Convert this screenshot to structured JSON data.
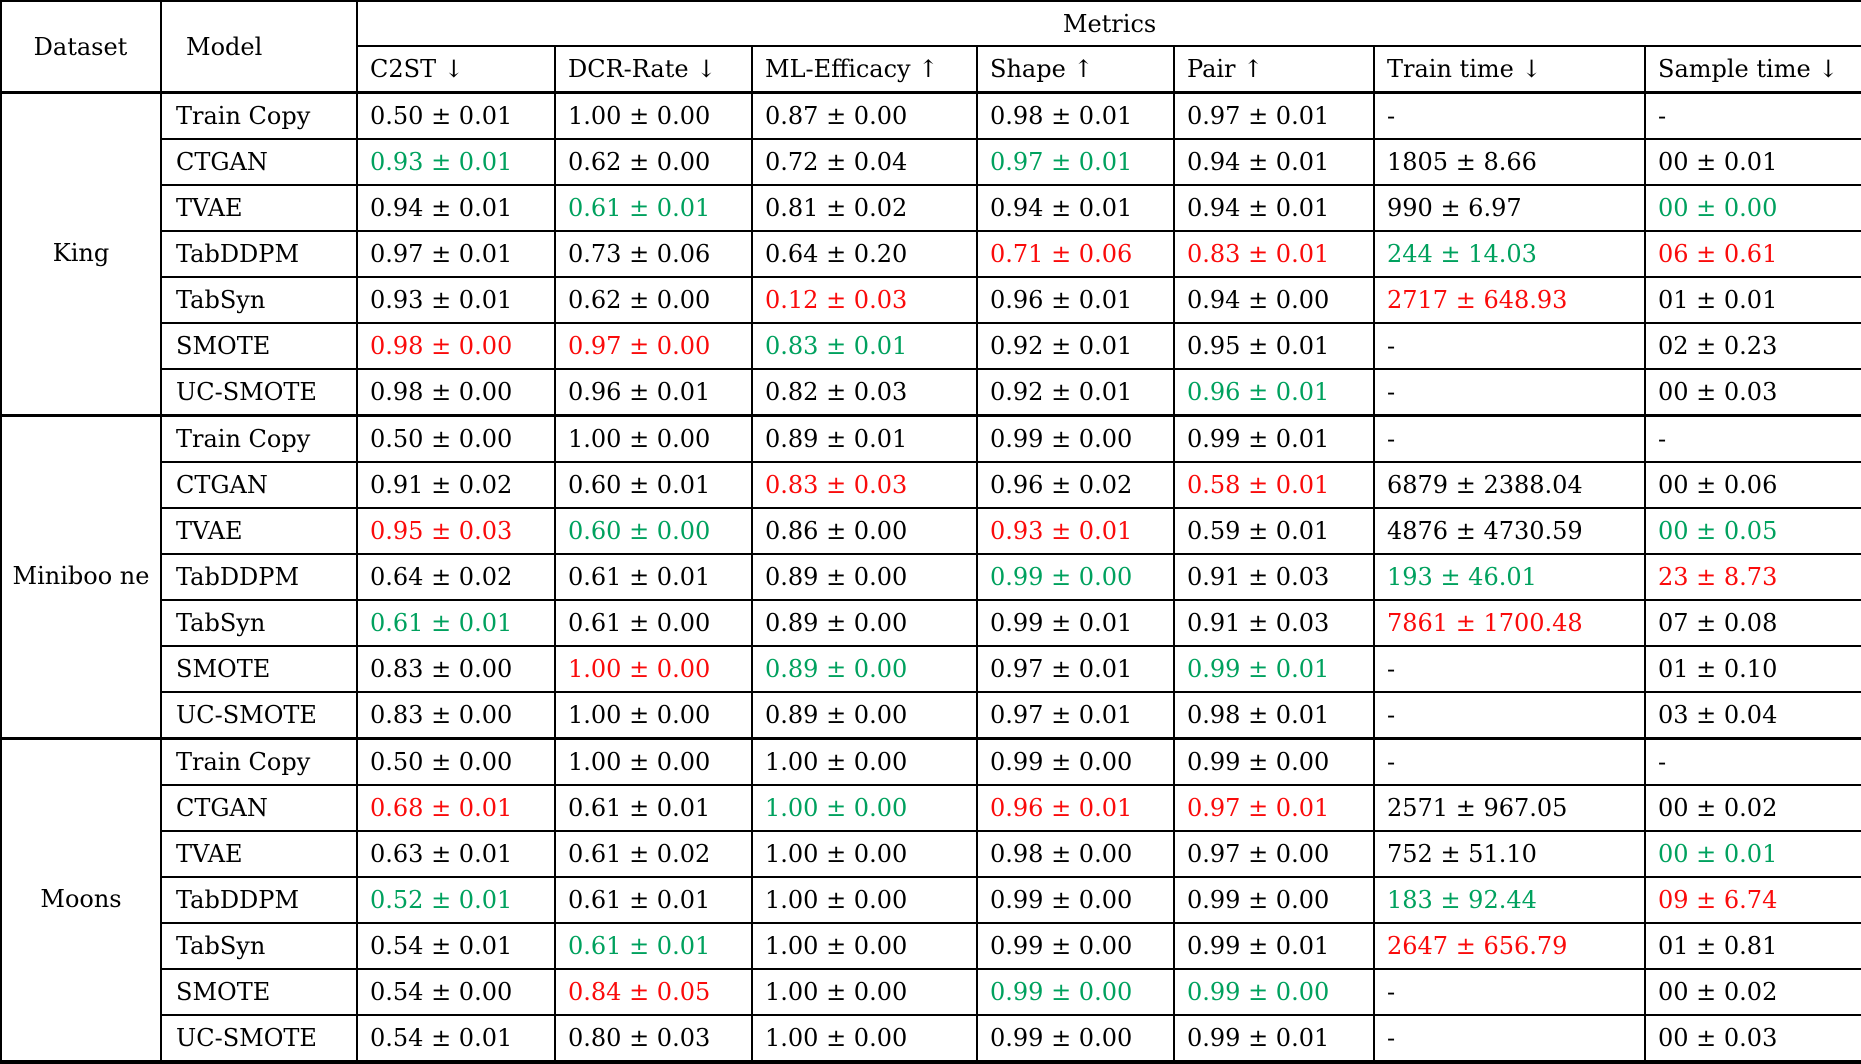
{
  "colors": {
    "good": "#00a15e",
    "bad": "#fa0b0b",
    "text": "#000000",
    "background": "#ffffff"
  },
  "header": {
    "dataset": "Dataset",
    "model": "Model",
    "metrics": "Metrics",
    "columns": [
      "C2ST ↓",
      "DCR-Rate ↓",
      "ML-Efficacy ↑",
      "Shape ↑",
      "Pair ↑",
      "Train time ↓",
      "Sample time ↓"
    ]
  },
  "legend": {
    "best_color_meaning": "best value (green, bold)",
    "worst_color_meaning": "worst value (red)"
  },
  "groups": [
    {
      "dataset": "King",
      "rows": [
        {
          "model": "Train Copy",
          "cells": [
            {
              "t": "0.50 ± 0.01",
              "c": "k"
            },
            {
              "t": "1.00 ± 0.00",
              "c": "k"
            },
            {
              "t": "0.87 ± 0.00",
              "c": "k"
            },
            {
              "t": "0.98 ± 0.01",
              "c": "k"
            },
            {
              "t": "0.97 ± 0.01",
              "c": "k"
            },
            {
              "t": "-",
              "c": "k"
            },
            {
              "t": "-",
              "c": "k"
            }
          ]
        },
        {
          "model": "CTGAN",
          "cells": [
            {
              "t": "0.93 ± 0.01",
              "c": "g"
            },
            {
              "t": "0.62 ± 0.00",
              "c": "k"
            },
            {
              "t": "0.72 ± 0.04",
              "c": "k"
            },
            {
              "t": "0.97 ± 0.01",
              "c": "g"
            },
            {
              "t": "0.94 ± 0.01",
              "c": "k"
            },
            {
              "t": "1805 ± 8.66",
              "c": "k"
            },
            {
              "t": "00 ± 0.01",
              "c": "k"
            }
          ]
        },
        {
          "model": "TVAE",
          "cells": [
            {
              "t": "0.94 ± 0.01",
              "c": "k"
            },
            {
              "t": "0.61 ± 0.01",
              "c": "g"
            },
            {
              "t": "0.81 ± 0.02",
              "c": "k"
            },
            {
              "t": "0.94 ± 0.01",
              "c": "k"
            },
            {
              "t": "0.94 ± 0.01",
              "c": "k"
            },
            {
              "t": "990 ± 6.97",
              "c": "k"
            },
            {
              "t": "00 ± 0.00",
              "c": "g"
            }
          ]
        },
        {
          "model": "TabDDPM",
          "cells": [
            {
              "t": "0.97 ± 0.01",
              "c": "k"
            },
            {
              "t": "0.73 ± 0.06",
              "c": "k"
            },
            {
              "t": "0.64 ± 0.20",
              "c": "k"
            },
            {
              "t": "0.71 ± 0.06",
              "c": "r"
            },
            {
              "t": "0.83 ± 0.01",
              "c": "r"
            },
            {
              "t": "244 ± 14.03",
              "c": "g"
            },
            {
              "t": "06 ± 0.61",
              "c": "r"
            }
          ]
        },
        {
          "model": "TabSyn",
          "cells": [
            {
              "t": "0.93 ± 0.01",
              "c": "k"
            },
            {
              "t": "0.62 ± 0.00",
              "c": "k"
            },
            {
              "t": "0.12 ± 0.03",
              "c": "r"
            },
            {
              "t": "0.96 ± 0.01",
              "c": "k"
            },
            {
              "t": "0.94 ± 0.00",
              "c": "k"
            },
            {
              "t": "2717 ± 648.93",
              "c": "r"
            },
            {
              "t": "01 ± 0.01",
              "c": "k"
            }
          ]
        },
        {
          "model": "SMOTE",
          "cells": [
            {
              "t": "0.98 ± 0.00",
              "c": "r"
            },
            {
              "t": "0.97 ± 0.00",
              "c": "r"
            },
            {
              "t": "0.83 ± 0.01",
              "c": "g"
            },
            {
              "t": "0.92 ± 0.01",
              "c": "k"
            },
            {
              "t": "0.95 ± 0.01",
              "c": "k"
            },
            {
              "t": "-",
              "c": "k"
            },
            {
              "t": "02 ± 0.23",
              "c": "k"
            }
          ]
        },
        {
          "model": "UC-SMOTE",
          "cells": [
            {
              "t": "0.98 ± 0.00",
              "c": "k"
            },
            {
              "t": "0.96 ± 0.01",
              "c": "k"
            },
            {
              "t": "0.82 ± 0.03",
              "c": "k"
            },
            {
              "t": "0.92 ± 0.01",
              "c": "k"
            },
            {
              "t": "0.96 ± 0.01",
              "c": "g"
            },
            {
              "t": "-",
              "c": "k"
            },
            {
              "t": "00 ± 0.03",
              "c": "k"
            }
          ]
        }
      ]
    },
    {
      "dataset": "Miniboo\nne",
      "rows": [
        {
          "model": "Train Copy",
          "cells": [
            {
              "t": "0.50 ± 0.00",
              "c": "k"
            },
            {
              "t": "1.00 ± 0.00",
              "c": "k"
            },
            {
              "t": "0.89 ± 0.01",
              "c": "k"
            },
            {
              "t": "0.99 ± 0.00",
              "c": "k"
            },
            {
              "t": "0.99 ± 0.01",
              "c": "k"
            },
            {
              "t": "-",
              "c": "k"
            },
            {
              "t": "-",
              "c": "k"
            }
          ]
        },
        {
          "model": "CTGAN",
          "cells": [
            {
              "t": "0.91 ± 0.02",
              "c": "k"
            },
            {
              "t": "0.60 ± 0.01",
              "c": "k"
            },
            {
              "t": "0.83 ± 0.03",
              "c": "r"
            },
            {
              "t": "0.96 ± 0.02",
              "c": "k"
            },
            {
              "t": "0.58 ± 0.01",
              "c": "r"
            },
            {
              "t": "6879 ± 2388.04",
              "c": "k"
            },
            {
              "t": "00 ± 0.06",
              "c": "k"
            }
          ]
        },
        {
          "model": "TVAE",
          "cells": [
            {
              "t": "0.95 ± 0.03",
              "c": "r"
            },
            {
              "t": "0.60 ± 0.00",
              "c": "g"
            },
            {
              "t": "0.86 ± 0.00",
              "c": "k"
            },
            {
              "t": "0.93 ± 0.01",
              "c": "r"
            },
            {
              "t": "0.59 ± 0.01",
              "c": "k"
            },
            {
              "t": "4876 ± 4730.59",
              "c": "k"
            },
            {
              "t": "00 ± 0.05",
              "c": "g"
            }
          ]
        },
        {
          "model": "TabDDPM",
          "cells": [
            {
              "t": "0.64 ± 0.02",
              "c": "k"
            },
            {
              "t": "0.61 ± 0.01",
              "c": "k"
            },
            {
              "t": "0.89 ± 0.00",
              "c": "k"
            },
            {
              "t": "0.99 ± 0.00",
              "c": "g"
            },
            {
              "t": "0.91 ± 0.03",
              "c": "k"
            },
            {
              "t": "193 ± 46.01",
              "c": "g"
            },
            {
              "t": "23 ± 8.73",
              "c": "r"
            }
          ]
        },
        {
          "model": "TabSyn",
          "cells": [
            {
              "t": "0.61 ± 0.01",
              "c": "g"
            },
            {
              "t": "0.61 ± 0.00",
              "c": "k"
            },
            {
              "t": "0.89 ± 0.00",
              "c": "k"
            },
            {
              "t": "0.99 ± 0.01",
              "c": "k"
            },
            {
              "t": "0.91 ± 0.03",
              "c": "k"
            },
            {
              "t": "7861 ± 1700.48",
              "c": "r"
            },
            {
              "t": "07 ± 0.08",
              "c": "k"
            }
          ]
        },
        {
          "model": "SMOTE",
          "cells": [
            {
              "t": "0.83 ± 0.00",
              "c": "k"
            },
            {
              "t": "1.00 ± 0.00",
              "c": "r"
            },
            {
              "t": "0.89 ± 0.00",
              "c": "g"
            },
            {
              "t": "0.97 ± 0.01",
              "c": "k"
            },
            {
              "t": "0.99 ± 0.01",
              "c": "g"
            },
            {
              "t": "-",
              "c": "k"
            },
            {
              "t": "01 ± 0.10",
              "c": "k"
            }
          ]
        },
        {
          "model": "UC-SMOTE",
          "cells": [
            {
              "t": "0.83 ± 0.00",
              "c": "k"
            },
            {
              "t": "1.00 ± 0.00",
              "c": "k"
            },
            {
              "t": "0.89 ± 0.00",
              "c": "k"
            },
            {
              "t": "0.97 ± 0.01",
              "c": "k"
            },
            {
              "t": "0.98 ± 0.01",
              "c": "k"
            },
            {
              "t": "-",
              "c": "k"
            },
            {
              "t": "03 ± 0.04",
              "c": "k"
            }
          ]
        }
      ]
    },
    {
      "dataset": "Moons",
      "rows": [
        {
          "model": "Train Copy",
          "cells": [
            {
              "t": "0.50 ± 0.00",
              "c": "k"
            },
            {
              "t": "1.00 ± 0.00",
              "c": "k"
            },
            {
              "t": "1.00 ± 0.00",
              "c": "k"
            },
            {
              "t": "0.99 ± 0.00",
              "c": "k"
            },
            {
              "t": "0.99 ± 0.00",
              "c": "k"
            },
            {
              "t": "-",
              "c": "k"
            },
            {
              "t": "-",
              "c": "k"
            }
          ]
        },
        {
          "model": "CTGAN",
          "cells": [
            {
              "t": "0.68 ± 0.01",
              "c": "r"
            },
            {
              "t": "0.61 ± 0.01",
              "c": "k"
            },
            {
              "t": "1.00 ± 0.00",
              "c": "g"
            },
            {
              "t": "0.96 ± 0.01",
              "c": "r"
            },
            {
              "t": "0.97 ± 0.01",
              "c": "r"
            },
            {
              "t": "2571 ± 967.05",
              "c": "k"
            },
            {
              "t": "00 ± 0.02",
              "c": "k"
            }
          ]
        },
        {
          "model": "TVAE",
          "cells": [
            {
              "t": "0.63 ± 0.01",
              "c": "k"
            },
            {
              "t": "0.61 ± 0.02",
              "c": "k"
            },
            {
              "t": "1.00 ± 0.00",
              "c": "k"
            },
            {
              "t": "0.98 ± 0.00",
              "c": "k"
            },
            {
              "t": "0.97 ± 0.00",
              "c": "k"
            },
            {
              "t": "752 ± 51.10",
              "c": "k"
            },
            {
              "t": "00 ± 0.01",
              "c": "g"
            }
          ]
        },
        {
          "model": "TabDDPM",
          "cells": [
            {
              "t": "0.52 ± 0.01",
              "c": "g"
            },
            {
              "t": "0.61 ± 0.01",
              "c": "k"
            },
            {
              "t": "1.00 ± 0.00",
              "c": "k"
            },
            {
              "t": "0.99 ± 0.00",
              "c": "k"
            },
            {
              "t": "0.99 ± 0.00",
              "c": "k"
            },
            {
              "t": "183 ± 92.44",
              "c": "g"
            },
            {
              "t": "09 ± 6.74",
              "c": "r"
            }
          ]
        },
        {
          "model": "TabSyn",
          "cells": [
            {
              "t": "0.54 ± 0.01",
              "c": "k"
            },
            {
              "t": "0.61 ± 0.01",
              "c": "g"
            },
            {
              "t": "1.00 ± 0.00",
              "c": "k"
            },
            {
              "t": "0.99 ± 0.00",
              "c": "k"
            },
            {
              "t": "0.99 ± 0.01",
              "c": "k"
            },
            {
              "t": "2647 ± 656.79",
              "c": "r"
            },
            {
              "t": "01 ± 0.81",
              "c": "k"
            }
          ]
        },
        {
          "model": "SMOTE",
          "cells": [
            {
              "t": "0.54 ± 0.00",
              "c": "k"
            },
            {
              "t": "0.84 ± 0.05",
              "c": "r"
            },
            {
              "t": "1.00 ± 0.00",
              "c": "k"
            },
            {
              "t": "0.99 ± 0.00",
              "c": "g"
            },
            {
              "t": "0.99 ± 0.00",
              "c": "g"
            },
            {
              "t": "-",
              "c": "k"
            },
            {
              "t": "00 ± 0.02",
              "c": "k"
            }
          ]
        },
        {
          "model": "UC-SMOTE",
          "cells": [
            {
              "t": "0.54 ± 0.01",
              "c": "k"
            },
            {
              "t": "0.80 ± 0.03",
              "c": "k"
            },
            {
              "t": "1.00 ± 0.00",
              "c": "k"
            },
            {
              "t": "0.99 ± 0.00",
              "c": "k"
            },
            {
              "t": "0.99 ± 0.01",
              "c": "k"
            },
            {
              "t": "-",
              "c": "k"
            },
            {
              "t": "00 ± 0.03",
              "c": "k"
            }
          ]
        }
      ]
    }
  ]
}
